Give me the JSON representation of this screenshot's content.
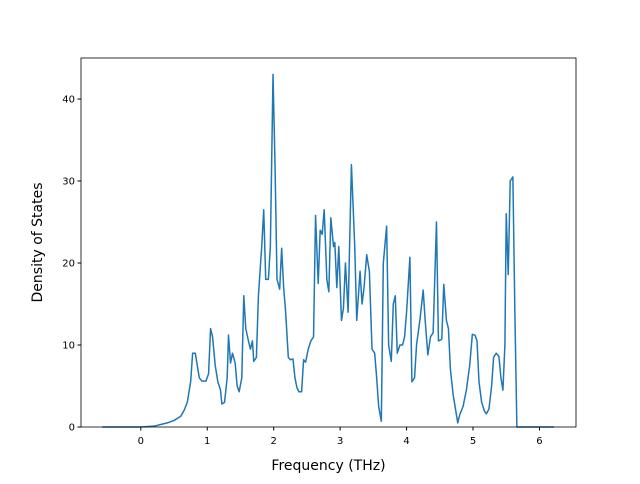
{
  "chart_data": {
    "type": "line",
    "xlabel": "Frequency (THz)",
    "ylabel": "Density of States",
    "x": [
      -0.58,
      0,
      0.2,
      0.3,
      0.4,
      0.5,
      0.6,
      0.65,
      0.7,
      0.75,
      0.78,
      0.82,
      0.88,
      0.92,
      0.98,
      1.02,
      1.05,
      1.08,
      1.12,
      1.16,
      1.2,
      1.22,
      1.26,
      1.3,
      1.32,
      1.35,
      1.38,
      1.42,
      1.45,
      1.48,
      1.52,
      1.55,
      1.58,
      1.62,
      1.65,
      1.68,
      1.7,
      1.74,
      1.77,
      1.82,
      1.85,
      1.88,
      1.92,
      1.95,
      1.99,
      2.02,
      2.05,
      2.09,
      2.12,
      2.15,
      2.18,
      2.22,
      2.25,
      2.29,
      2.32,
      2.35,
      2.38,
      2.42,
      2.45,
      2.48,
      2.52,
      2.56,
      2.6,
      2.63,
      2.67,
      2.7,
      2.73,
      2.76,
      2.8,
      2.83,
      2.86,
      2.9,
      2.92,
      2.95,
      2.98,
      3.02,
      3.05,
      3.08,
      3.12,
      3.17,
      3.22,
      3.25,
      3.3,
      3.33,
      3.36,
      3.4,
      3.44,
      3.48,
      3.52,
      3.55,
      3.58,
      3.62,
      3.65,
      3.7,
      3.73,
      3.77,
      3.8,
      3.83,
      3.86,
      3.9,
      3.94,
      3.97,
      4.0,
      4.05,
      4.08,
      4.12,
      4.15,
      4.2,
      4.25,
      4.28,
      4.32,
      4.36,
      4.4,
      4.45,
      4.48,
      4.53,
      4.56,
      4.6,
      4.63,
      4.66,
      4.7,
      4.74,
      4.77,
      4.8,
      4.85,
      4.9,
      4.95,
      4.99,
      5.03,
      5.06,
      5.09,
      5.13,
      5.17,
      5.2,
      5.24,
      5.28,
      5.31,
      5.35,
      5.39,
      5.42,
      5.45,
      5.48,
      5.5,
      5.53,
      5.56,
      5.6,
      5.63,
      5.66,
      6.22
    ],
    "series": [
      {
        "color": "#1f77b4",
        "values": [
          0,
          0,
          0.1,
          0.3,
          0.5,
          0.8,
          1.3,
          2,
          3,
          5.5,
          9,
          9,
          6,
          5.6,
          5.6,
          6.5,
          12,
          11,
          7.5,
          5.5,
          4.5,
          2.8,
          3,
          6,
          11.2,
          7.8,
          9,
          7.8,
          5,
          4.3,
          6,
          16,
          12,
          10.5,
          9.5,
          10.5,
          8,
          8.5,
          16,
          22,
          26.5,
          18,
          18,
          22,
          43,
          32,
          18,
          16.8,
          21.8,
          17,
          14,
          8.5,
          8.2,
          8.3,
          6,
          4.8,
          4.3,
          4.3,
          8.2,
          7.9,
          9.5,
          10.5,
          11,
          25.8,
          17.5,
          24,
          23.5,
          26.5,
          18,
          16.5,
          25.5,
          22,
          22.5,
          17,
          22,
          13,
          14.5,
          20,
          14,
          32,
          22,
          13,
          19,
          15,
          17,
          21,
          19,
          9.5,
          9,
          6,
          2.5,
          0.7,
          20,
          24.5,
          10,
          8,
          15,
          16,
          9,
          10,
          10,
          11,
          14,
          20.7,
          5.5,
          6,
          10,
          13,
          16.7,
          13,
          8.8,
          11,
          11.5,
          25,
          10.5,
          10.7,
          17.4,
          13,
          12,
          7,
          4,
          2,
          0.5,
          1.5,
          2.5,
          4.5,
          7.5,
          11.3,
          11.2,
          10.5,
          5.5,
          3,
          2,
          1.6,
          2.2,
          5,
          8.5,
          9,
          8.6,
          6,
          4.5,
          10,
          26,
          18.6,
          30,
          30.5,
          14,
          0,
          0
        ]
      }
    ],
    "xlim": [
      -0.9,
      6.55
    ],
    "ylim": [
      0,
      45
    ],
    "xticks": [
      0,
      1,
      2,
      3,
      4,
      5,
      6
    ],
    "yticks": [
      0,
      10,
      20,
      30,
      40
    ]
  }
}
